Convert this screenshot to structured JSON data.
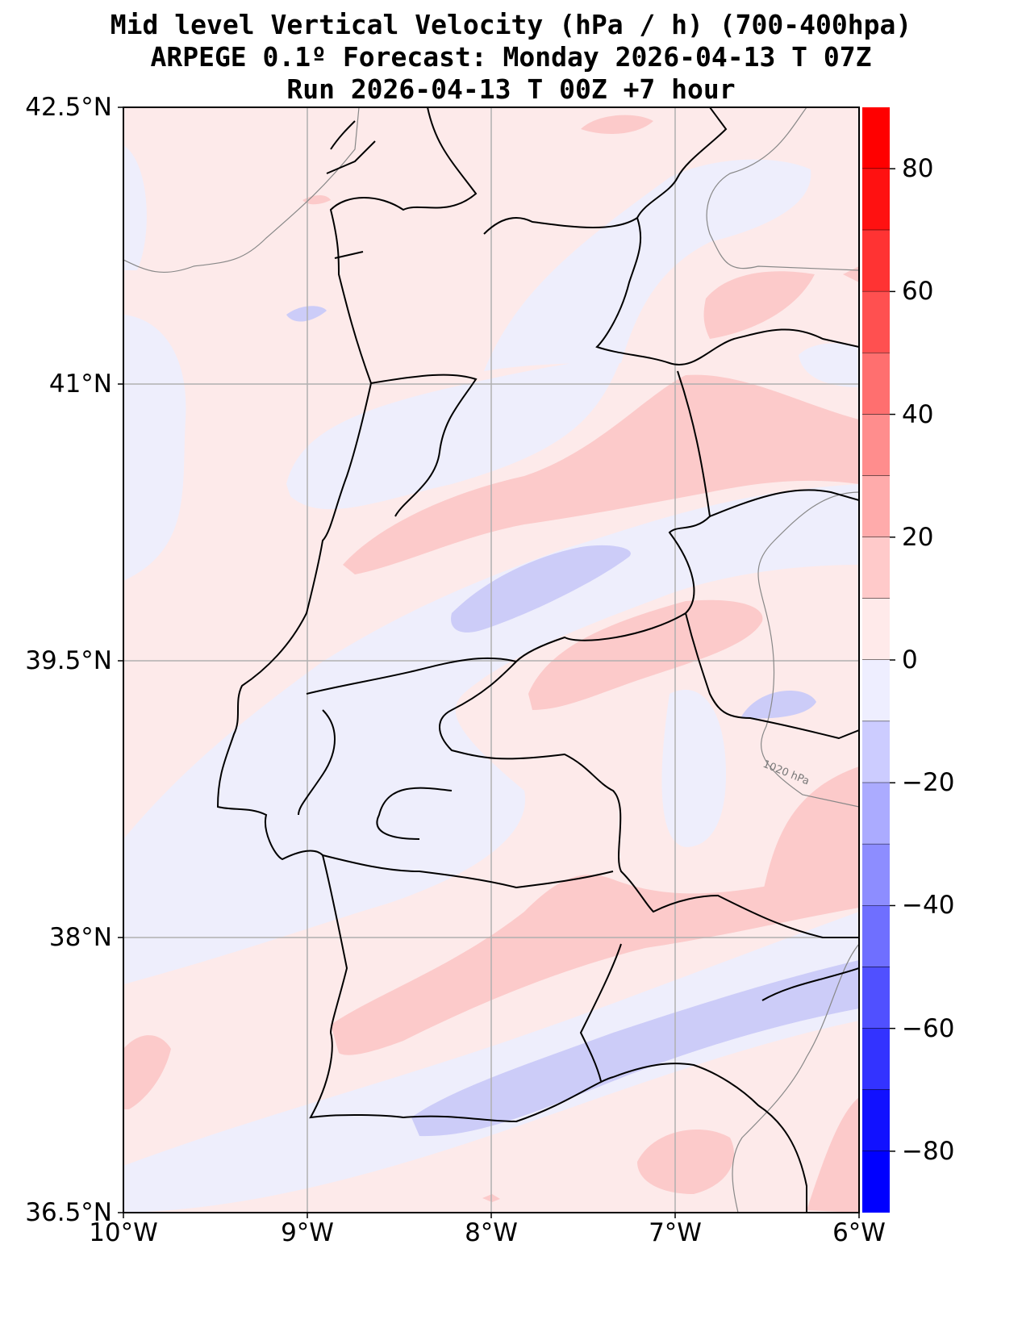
{
  "title": {
    "line1": "Mid level Vertical Velocity (hPa / h)  (700-400hpa)",
    "line2": "ARPEGE 0.1º Forecast: Monday 2026-04-13 T 07Z",
    "line3": "Run 2026-04-13 T 00Z +7 hour"
  },
  "axes": {
    "lat_ticks": [
      "42.5°N",
      "41°N",
      "39.5°N",
      "38°N",
      "36.5°N"
    ],
    "lon_ticks": [
      "10°W",
      "9°W",
      "8°W",
      "7°W",
      "6°W"
    ],
    "lat_range": [
      36.5,
      42.5
    ],
    "lon_range": [
      -10,
      -6
    ]
  },
  "isobar_label": "1020 hPa",
  "colorbar": {
    "range": [
      -90,
      90
    ],
    "ticks": [
      "80",
      "60",
      "40",
      "20",
      "0",
      "−20",
      "−40",
      "−60",
      "−80"
    ],
    "levels": [
      {
        "from": 80,
        "to": 90,
        "color": "#ff0000"
      },
      {
        "from": 70,
        "to": 80,
        "color": "#ff1111"
      },
      {
        "from": 60,
        "to": 70,
        "color": "#ff3333"
      },
      {
        "from": 50,
        "to": 60,
        "color": "#ff5050"
      },
      {
        "from": 40,
        "to": 50,
        "color": "#ff6f6f"
      },
      {
        "from": 30,
        "to": 40,
        "color": "#ff8d8d"
      },
      {
        "from": 20,
        "to": 30,
        "color": "#ffabab"
      },
      {
        "from": 10,
        "to": 20,
        "color": "#ffcaca"
      },
      {
        "from": 0,
        "to": 10,
        "color": "#ffeaea"
      },
      {
        "from": -10,
        "to": 0,
        "color": "#eeeeff"
      },
      {
        "from": -20,
        "to": -10,
        "color": "#ccccff"
      },
      {
        "from": -30,
        "to": -20,
        "color": "#ababff"
      },
      {
        "from": -40,
        "to": -30,
        "color": "#8d8dff"
      },
      {
        "from": -50,
        "to": -40,
        "color": "#6f6fff"
      },
      {
        "from": -60,
        "to": -50,
        "color": "#5050ff"
      },
      {
        "from": -70,
        "to": -60,
        "color": "#3333ff"
      },
      {
        "from": -80,
        "to": -70,
        "color": "#1111ff"
      },
      {
        "from": -90,
        "to": -80,
        "color": "#0000ff"
      }
    ]
  }
}
